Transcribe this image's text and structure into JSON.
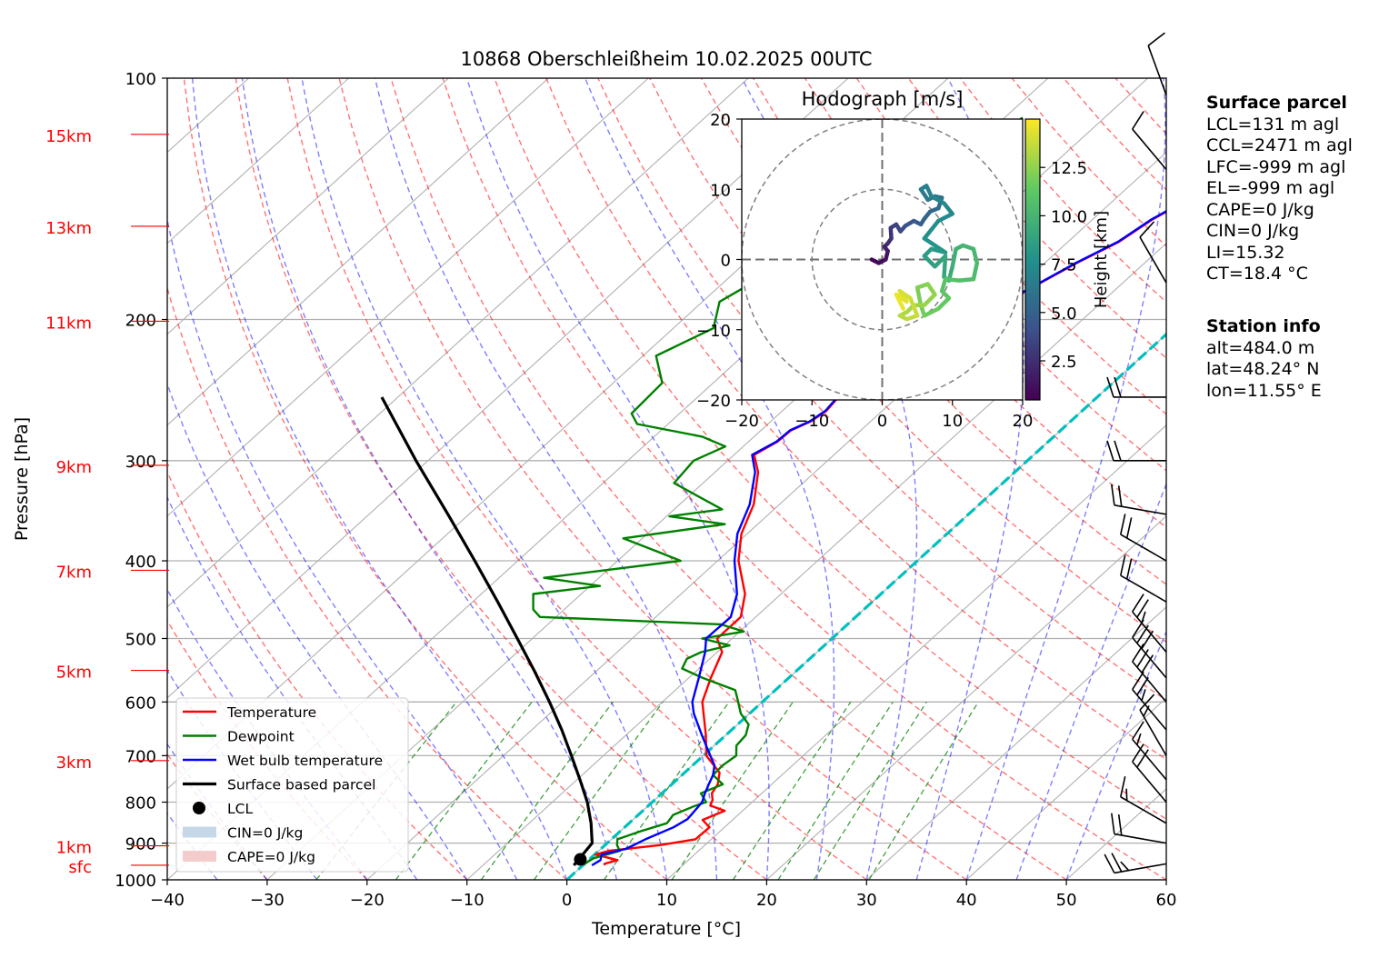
{
  "chart_data": {
    "type": "line",
    "title": "10868 Oberschleißheim 10.02.2025 00UTC",
    "xlabel": "Temperature [°C]",
    "ylabel": "Pressure [hPa]",
    "xlim": [
      -40,
      60
    ],
    "ylim": [
      1000,
      100
    ],
    "y_scale": "log",
    "x_ticks": [
      "−40",
      "−30",
      "−20",
      "−10",
      "0",
      "10",
      "20",
      "30",
      "40",
      "50",
      "60"
    ],
    "x_tick_values": [
      -40,
      -30,
      -20,
      -10,
      0,
      10,
      20,
      30,
      40,
      50,
      60
    ],
    "y_ticks": [
      "100",
      "200",
      "300",
      "400",
      "500",
      "600",
      "700",
      "800",
      "900",
      "1000"
    ],
    "y_tick_values": [
      100,
      200,
      300,
      400,
      500,
      600,
      700,
      800,
      900,
      1000
    ],
    "grid": true,
    "height_labels": [
      {
        "label": "15km",
        "p": 117.5
      },
      {
        "label": "13km",
        "p": 153
      },
      {
        "label": "11km",
        "p": 201
      },
      {
        "label": "9km",
        "p": 304
      },
      {
        "label": "7km",
        "p": 411
      },
      {
        "label": "5km",
        "p": 548
      },
      {
        "label": "3km",
        "p": 710
      },
      {
        "label": "1km",
        "p": 907
      },
      {
        "label": "sfc",
        "p": 959
      }
    ],
    "series": [
      {
        "name": "Temperature",
        "color": "#ff0000",
        "points": [
          [
            959,
            2.2
          ],
          [
            955,
            2.0
          ],
          [
            945,
            2.9
          ],
          [
            930,
            0.1
          ],
          [
            920,
            1.0
          ],
          [
            905,
            5.5
          ],
          [
            890,
            8.4
          ],
          [
            860,
            8.5
          ],
          [
            842,
            7.0
          ],
          [
            820,
            8.2
          ],
          [
            808,
            6.2
          ],
          [
            795,
            5.8
          ],
          [
            780,
            5.0
          ],
          [
            760,
            4.6
          ],
          [
            735,
            3.5
          ],
          [
            700,
            0.3
          ],
          [
            660,
            -2.0
          ],
          [
            600,
            -6.0
          ],
          [
            560,
            -7.8
          ],
          [
            520,
            -9.5
          ],
          [
            500,
            -11.5
          ],
          [
            470,
            -11.5
          ],
          [
            440,
            -13.6
          ],
          [
            400,
            -17.9
          ],
          [
            370,
            -20.6
          ],
          [
            340,
            -22.6
          ],
          [
            310,
            -25.7
          ],
          [
            295,
            -28.0
          ],
          [
            284,
            -27.1
          ],
          [
            275,
            -27.0
          ],
          [
            268,
            -26.0
          ],
          [
            260,
            -25.6
          ],
          [
            250,
            -25.9
          ],
          [
            240,
            -25.3
          ],
          [
            230,
            -25.8
          ],
          [
            220,
            -23.8
          ],
          [
            214,
            -24.6
          ],
          [
            207,
            -21.0
          ],
          [
            200,
            -21.4
          ],
          [
            190,
            -18.6
          ],
          [
            185,
            -18.9
          ],
          [
            170,
            -16.8
          ],
          [
            160,
            -14.9
          ],
          [
            150,
            -14.0
          ],
          [
            140,
            -12.3
          ],
          [
            130,
            -11.7
          ],
          [
            125,
            -9.6
          ],
          [
            120,
            -9.7
          ],
          [
            115,
            -6.7
          ],
          [
            112,
            -6.4
          ]
        ]
      },
      {
        "name": "Dewpoint",
        "color": "#008000",
        "points": [
          [
            959,
            0.1
          ],
          [
            955,
            0.0
          ],
          [
            940,
            0.3
          ],
          [
            920,
            2.1
          ],
          [
            905,
            1.2
          ],
          [
            890,
            0.6
          ],
          [
            870,
            2.0
          ],
          [
            850,
            3.8
          ],
          [
            830,
            3.5
          ],
          [
            810,
            4.6
          ],
          [
            800,
            5.4
          ],
          [
            780,
            3.9
          ],
          [
            760,
            5.1
          ],
          [
            740,
            3.1
          ],
          [
            720,
            3.0
          ],
          [
            700,
            3.3
          ],
          [
            680,
            2.2
          ],
          [
            660,
            2.0
          ],
          [
            640,
            1.1
          ],
          [
            620,
            -0.9
          ],
          [
            595,
            -2.8
          ],
          [
            580,
            -4.0
          ],
          [
            560,
            -8.6
          ],
          [
            545,
            -11.7
          ],
          [
            530,
            -12.3
          ],
          [
            520,
            -11.6
          ],
          [
            510,
            -9.5
          ],
          [
            500,
            -13.0
          ],
          [
            490,
            -9.6
          ],
          [
            480,
            -12.7
          ],
          [
            470,
            -31.6
          ],
          [
            460,
            -33.1
          ],
          [
            440,
            -34.8
          ],
          [
            430,
            -29.0
          ],
          [
            420,
            -35.5
          ],
          [
            400,
            -23.7
          ],
          [
            390,
            -26.9
          ],
          [
            375,
            -31.9
          ],
          [
            360,
            -23.3
          ],
          [
            352,
            -29.7
          ],
          [
            345,
            -25.2
          ],
          [
            320,
            -32.9
          ],
          [
            300,
            -33.4
          ],
          [
            288,
            -31.8
          ],
          [
            280,
            -35.2
          ],
          [
            270,
            -43.1
          ],
          [
            262,
            -44.8
          ],
          [
            240,
            -45.1
          ],
          [
            222,
            -48.7
          ],
          [
            205,
            -46.0
          ],
          [
            190,
            -48.3
          ],
          [
            175,
            -46.5
          ],
          [
            160,
            -46.0
          ],
          [
            145,
            -43.5
          ],
          [
            130,
            -42.1
          ],
          [
            115,
            -38.5
          ],
          [
            112,
            -38.2
          ]
        ]
      },
      {
        "name": "Wet bulb temperature",
        "color": "#0000ff",
        "points": [
          [
            959,
            0.9
          ],
          [
            945,
            1.2
          ],
          [
            930,
            0.7
          ],
          [
            915,
            2.5
          ],
          [
            890,
            3.4
          ],
          [
            860,
            4.9
          ],
          [
            840,
            5.4
          ],
          [
            820,
            5.2
          ],
          [
            800,
            5.0
          ],
          [
            780,
            4.3
          ],
          [
            760,
            3.7
          ],
          [
            740,
            3.1
          ],
          [
            720,
            2.2
          ],
          [
            700,
            0.7
          ],
          [
            660,
            -2.4
          ],
          [
            620,
            -5.6
          ],
          [
            600,
            -7.0
          ],
          [
            560,
            -9.0
          ],
          [
            520,
            -11.2
          ],
          [
            500,
            -12.6
          ],
          [
            470,
            -12.5
          ],
          [
            440,
            -14.4
          ],
          [
            400,
            -18.3
          ],
          [
            370,
            -21.0
          ],
          [
            340,
            -23.0
          ],
          [
            310,
            -26.0
          ],
          [
            295,
            -28.2
          ],
          [
            284,
            -27.2
          ],
          [
            275,
            -27.1
          ],
          [
            268,
            -26.1
          ],
          [
            260,
            -25.7
          ],
          [
            250,
            -26.0
          ],
          [
            240,
            -25.4
          ],
          [
            230,
            -25.9
          ],
          [
            220,
            -23.9
          ],
          [
            214,
            -24.7
          ],
          [
            207,
            -21.1
          ],
          [
            200,
            -21.5
          ],
          [
            190,
            -18.7
          ],
          [
            185,
            -19.0
          ],
          [
            170,
            -16.9
          ],
          [
            160,
            -15.0
          ],
          [
            150,
            -14.1
          ],
          [
            140,
            -12.4
          ],
          [
            130,
            -11.9
          ],
          [
            125,
            -9.8
          ],
          [
            120,
            -9.9
          ],
          [
            115,
            -6.9
          ],
          [
            112,
            -6.6
          ]
        ]
      },
      {
        "name": "Surface based parcel",
        "color": "#000000",
        "points": [
          [
            959,
            -0.9
          ],
          [
            900,
            -1.5
          ],
          [
            850,
            -3.8
          ],
          [
            800,
            -6.5
          ],
          [
            750,
            -9.7
          ],
          [
            700,
            -13.2
          ],
          [
            650,
            -17.0
          ],
          [
            600,
            -21.3
          ],
          [
            550,
            -26.1
          ],
          [
            500,
            -31.5
          ],
          [
            450,
            -37.5
          ],
          [
            400,
            -44.3
          ],
          [
            350,
            -52.1
          ],
          [
            300,
            -61.2
          ],
          [
            250,
            -71.6
          ]
        ]
      }
    ],
    "lcl": {
      "label": "LCL",
      "p": 943,
      "t": -0.9
    },
    "freezing_line": {
      "color": "#00bfbf",
      "points": [
        [
          1000,
          0
        ],
        [
          100,
          0
        ]
      ]
    },
    "legend": {
      "placement": "lower-left",
      "entries": [
        {
          "label": "Temperature",
          "kind": "line",
          "color": "#ff0000"
        },
        {
          "label": "Dewpoint",
          "kind": "line",
          "color": "#008000"
        },
        {
          "label": "Wet bulb temperature",
          "kind": "line",
          "color": "#0000ff"
        },
        {
          "label": "Surface based parcel",
          "kind": "line",
          "color": "#000000"
        },
        {
          "label": "LCL",
          "kind": "dot",
          "color": "#000000"
        },
        {
          "label": "CIN=0 J/kg",
          "kind": "patch",
          "color": "#c6d8e8"
        },
        {
          "label": "CAPE=0 J/kg",
          "kind": "patch",
          "color": "#f5cccc"
        }
      ]
    },
    "wind_barbs": [
      {
        "p": 955,
        "speed_kt": 25,
        "dir_deg": 260
      },
      {
        "p": 900,
        "speed_kt": 20,
        "dir_deg": 280
      },
      {
        "p": 850,
        "speed_kt": 15,
        "dir_deg": 300
      },
      {
        "p": 800,
        "speed_kt": 20,
        "dir_deg": 320
      },
      {
        "p": 750,
        "speed_kt": 15,
        "dir_deg": 320
      },
      {
        "p": 700,
        "speed_kt": 15,
        "dir_deg": 330
      },
      {
        "p": 650,
        "speed_kt": 25,
        "dir_deg": 320
      },
      {
        "p": 600,
        "speed_kt": 30,
        "dir_deg": 320
      },
      {
        "p": 560,
        "speed_kt": 30,
        "dir_deg": 320
      },
      {
        "p": 520,
        "speed_kt": 25,
        "dir_deg": 320
      },
      {
        "p": 450,
        "speed_kt": 20,
        "dir_deg": 300
      },
      {
        "p": 400,
        "speed_kt": 20,
        "dir_deg": 300
      },
      {
        "p": 350,
        "speed_kt": 20,
        "dir_deg": 280
      },
      {
        "p": 300,
        "speed_kt": 20,
        "dir_deg": 270
      },
      {
        "p": 250,
        "speed_kt": 20,
        "dir_deg": 270
      },
      {
        "p": 180,
        "speed_kt": 10,
        "dir_deg": 330
      },
      {
        "p": 130,
        "speed_kt": 10,
        "dir_deg": 320
      },
      {
        "p": 105,
        "speed_kt": 10,
        "dir_deg": 340
      }
    ],
    "hodograph": {
      "title": "Hodograph [m/s]",
      "xlim": [
        -20,
        20
      ],
      "ylim": [
        -20,
        20
      ],
      "ticks": [
        "−20",
        "−10",
        "0",
        "10",
        "20"
      ],
      "tick_values": [
        -20,
        -10,
        0,
        10,
        20
      ],
      "rings": [
        10,
        20
      ],
      "colorbar": {
        "label": "Height [km]",
        "ticks": [
          "2.5",
          "5.0",
          "7.5",
          "10.0",
          "12.5"
        ],
        "tick_values": [
          2.5,
          5.0,
          7.5,
          10.0,
          12.5
        ],
        "range": [
          0.48,
          15.0
        ],
        "colormap": [
          "#440154",
          "#3b528b",
          "#21918c",
          "#5ec962",
          "#fde725"
        ]
      },
      "points": [
        [
          -1.5,
          0.0,
          0.5
        ],
        [
          -0.5,
          -0.5,
          0.8
        ],
        [
          0.5,
          0.0,
          1.2
        ],
        [
          0.8,
          1.2,
          1.6
        ],
        [
          0.3,
          1.8,
          2.0
        ],
        [
          0.8,
          2.3,
          2.3
        ],
        [
          1.3,
          3.0,
          2.6
        ],
        [
          1.2,
          4.5,
          3.0
        ],
        [
          2.0,
          5.0,
          3.3
        ],
        [
          2.6,
          4.0,
          3.7
        ],
        [
          3.3,
          4.8,
          4.0
        ],
        [
          4.5,
          5.5,
          4.4
        ],
        [
          5.5,
          5.0,
          4.7
        ],
        [
          6.0,
          5.8,
          5.0
        ],
        [
          6.8,
          6.8,
          5.3
        ],
        [
          8.0,
          7.3,
          5.6
        ],
        [
          8.5,
          8.8,
          5.9
        ],
        [
          7.5,
          9.0,
          6.1
        ],
        [
          6.5,
          8.5,
          6.3
        ],
        [
          5.5,
          10.0,
          6.5
        ],
        [
          6.3,
          10.5,
          6.7
        ],
        [
          7.0,
          9.0,
          6.9
        ],
        [
          8.8,
          8.0,
          7.1
        ],
        [
          10.0,
          6.5,
          7.3
        ],
        [
          8.0,
          5.5,
          7.5
        ],
        [
          6.0,
          3.0,
          7.7
        ],
        [
          7.5,
          2.0,
          7.9
        ],
        [
          9.0,
          1.0,
          8.1
        ],
        [
          7.0,
          1.5,
          8.3
        ],
        [
          6.0,
          0.5,
          8.5
        ],
        [
          7.5,
          -1.0,
          8.7
        ],
        [
          9.0,
          0.5,
          8.9
        ],
        [
          8.8,
          -2.5,
          9.1
        ],
        [
          9.5,
          -3.0,
          9.3
        ],
        [
          10.0,
          -1.0,
          9.5
        ],
        [
          10.5,
          1.5,
          9.7
        ],
        [
          11.5,
          2.0,
          9.9
        ],
        [
          13.0,
          1.5,
          10.1
        ],
        [
          13.5,
          -0.5,
          10.3
        ],
        [
          13.0,
          -2.8,
          10.5
        ],
        [
          11.0,
          -3.0,
          10.7
        ],
        [
          9.0,
          -2.8,
          10.9
        ],
        [
          8.5,
          -4.5,
          11.1
        ],
        [
          9.5,
          -5.5,
          11.3
        ],
        [
          8.0,
          -7.0,
          11.5
        ],
        [
          6.0,
          -8.0,
          11.7
        ],
        [
          5.5,
          -6.5,
          11.9
        ],
        [
          5.0,
          -4.0,
          12.1
        ],
        [
          6.5,
          -3.5,
          12.3
        ],
        [
          7.5,
          -5.0,
          12.5
        ],
        [
          6.0,
          -6.5,
          12.7
        ],
        [
          4.5,
          -6.5,
          12.9
        ],
        [
          3.5,
          -7.5,
          13.1
        ],
        [
          2.5,
          -8.0,
          13.3
        ],
        [
          3.5,
          -8.5,
          13.5
        ],
        [
          5.0,
          -8.0,
          13.7
        ],
        [
          4.0,
          -5.5,
          13.9
        ],
        [
          2.5,
          -4.5,
          14.1
        ],
        [
          3.5,
          -6.0,
          14.3
        ],
        [
          2.0,
          -5.0,
          14.5
        ],
        [
          3.0,
          -7.0,
          14.7
        ]
      ]
    }
  },
  "surface_parcel": {
    "header": "Surface parcel",
    "lines": [
      "LCL=131 m agl",
      "CCL=2471 m agl",
      "LFC=-999 m agl",
      "EL=-999 m agl",
      "CAPE=0 J/kg",
      "CIN=0 J/kg",
      "LI=15.32",
      "CT=18.4 °C"
    ]
  },
  "station_info": {
    "header": "Station info",
    "lines": [
      "alt=484.0 m",
      "lat=48.24° N",
      "lon=11.55° E"
    ]
  }
}
